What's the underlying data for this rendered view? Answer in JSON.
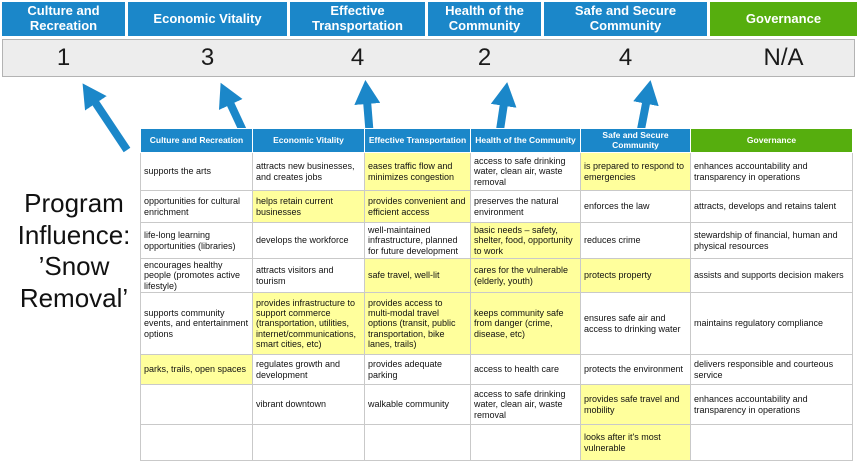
{
  "title": "Program Influence: ’Snow Removal’",
  "colors": {
    "blue": "#1b87c9",
    "green": "#56ae0e",
    "highlight": "#ffff9c"
  },
  "pillars": [
    {
      "name": "Culture and Recreation",
      "score": "1",
      "theme": "blue"
    },
    {
      "name": "Economic Vitality",
      "score": "3",
      "theme": "blue"
    },
    {
      "name": "Effective Transportation",
      "score": "4",
      "theme": "blue"
    },
    {
      "name": "Health of the Community",
      "score": "2",
      "theme": "blue"
    },
    {
      "name": "Safe and Secure Community",
      "score": "4",
      "theme": "blue"
    },
    {
      "name": "Governance",
      "score": "N/A",
      "theme": "green"
    }
  ],
  "matrix": {
    "headers": [
      "Culture and Recreation",
      "Economic Vitality",
      "Effective Transportation",
      "Health of the Community",
      "Safe and Secure Community",
      "Governance"
    ],
    "rows": [
      {
        "cells": [
          {
            "text": "supports the arts",
            "highlight": false
          },
          {
            "text": "attracts new businesses, and creates jobs",
            "highlight": false
          },
          {
            "text": "eases traffic flow and minimizes congestion",
            "highlight": true
          },
          {
            "text": "access to safe drinking water, clean air, waste removal",
            "highlight": false
          },
          {
            "text": "is prepared to respond to emergencies",
            "highlight": true
          },
          {
            "text": "enhances accountability and transparency in operations",
            "highlight": false
          }
        ]
      },
      {
        "cells": [
          {
            "text": "opportunities for cultural enrichment",
            "highlight": false
          },
          {
            "text": "helps retain current businesses",
            "highlight": true
          },
          {
            "text": "provides convenient and efficient access",
            "highlight": true
          },
          {
            "text": "preserves the natural environment",
            "highlight": false
          },
          {
            "text": "enforces the law",
            "highlight": false
          },
          {
            "text": "attracts, develops and retains talent",
            "highlight": false
          }
        ]
      },
      {
        "cells": [
          {
            "text": "life-long learning opportunities (libraries)",
            "highlight": false
          },
          {
            "text": "develops the workforce",
            "highlight": false
          },
          {
            "text": "well-maintained infrastructure, planned for future development",
            "highlight": false
          },
          {
            "text": "basic needs – safety, shelter, food, opportunity to work",
            "highlight": true
          },
          {
            "text": "reduces crime",
            "highlight": false
          },
          {
            "text": "stewardship of financial, human and physical resources",
            "highlight": false
          }
        ]
      },
      {
        "cells": [
          {
            "text": "encourages healthy people (promotes active lifestyle)",
            "highlight": false
          },
          {
            "text": "attracts visitors and tourism",
            "highlight": false
          },
          {
            "text": "safe travel, well-lit",
            "highlight": true
          },
          {
            "text": "cares for the vulnerable (elderly, youth)",
            "highlight": true
          },
          {
            "text": "protects property",
            "highlight": true
          },
          {
            "text": "assists and supports decision makers",
            "highlight": false
          }
        ]
      },
      {
        "cells": [
          {
            "text": "supports community events, and entertainment options",
            "highlight": false
          },
          {
            "text": "provides infrastructure to support commerce (transportation, utilities, internet/communications, smart cities, etc)",
            "highlight": true
          },
          {
            "text": "provides access to multi-modal travel options (transit, public transportation, bike lanes, trails)",
            "highlight": true
          },
          {
            "text": "keeps community safe from danger (crime, disease, etc)",
            "highlight": true
          },
          {
            "text": "ensures safe air and access to drinking water",
            "highlight": false
          },
          {
            "text": "maintains regulatory compliance",
            "highlight": false
          }
        ]
      },
      {
        "cells": [
          {
            "text": "parks, trails, open spaces",
            "highlight": true
          },
          {
            "text": "regulates growth and development",
            "highlight": false
          },
          {
            "text": "provides adequate parking",
            "highlight": false
          },
          {
            "text": "access to health care",
            "highlight": false
          },
          {
            "text": "protects the environment",
            "highlight": false
          },
          {
            "text": "delivers responsible and courteous service",
            "highlight": false
          }
        ]
      },
      {
        "cells": [
          {
            "text": "",
            "highlight": false
          },
          {
            "text": "vibrant downtown",
            "highlight": false
          },
          {
            "text": "walkable community",
            "highlight": false
          },
          {
            "text": "access to safe drinking water, clean air, waste removal",
            "highlight": false
          },
          {
            "text": "provides safe travel and mobility",
            "highlight": true
          },
          {
            "text": "enhances accountability and transparency in operations",
            "highlight": false
          }
        ]
      },
      {
        "cells": [
          {
            "text": "",
            "highlight": false
          },
          {
            "text": "",
            "highlight": false
          },
          {
            "text": "",
            "highlight": false
          },
          {
            "text": "",
            "highlight": false
          },
          {
            "text": "looks after it's most vulnerable",
            "highlight": true
          },
          {
            "text": "",
            "highlight": false
          }
        ]
      }
    ]
  }
}
